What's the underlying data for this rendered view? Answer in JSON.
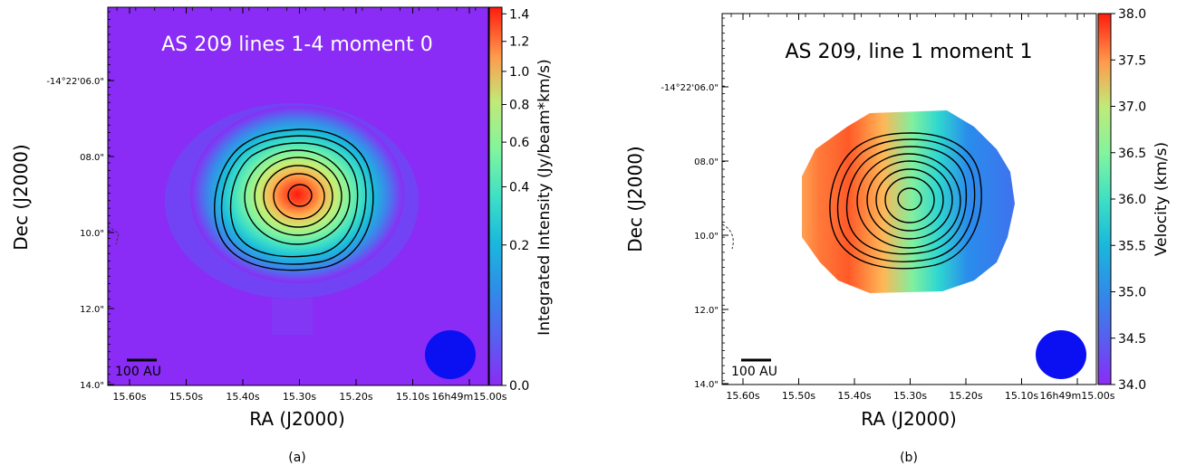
{
  "chart_data": [
    {
      "type": "heatmap",
      "panel_label": "(a)",
      "title": "AS 209 lines 1-4 moment 0",
      "xlabel": "RA (J2000)",
      "ylabel": "Dec (J2000)",
      "x_ticks": [
        "15.60s",
        "15.50s",
        "15.40s",
        "15.30s",
        "15.20s",
        "15.10s",
        "16h49m15.00s"
      ],
      "y_ticks": [
        "-14°22'06.0\"",
        "08.0\"",
        "10.0\"",
        "12.0\"",
        "14.0\""
      ],
      "colorbar": {
        "label": "Integrated Intensity (Jy/beam*km/s)",
        "ticks": [
          "0.0",
          "0.2",
          "0.4",
          "0.6",
          "0.8",
          "1.0",
          "1.2",
          "1.4"
        ],
        "range": [
          0.0,
          1.45
        ],
        "scale": "sqrt"
      },
      "contour_levels": 9,
      "scale_bar": "100 AU",
      "beam_color": "#0b10f2",
      "colormap": "rainbow",
      "background_color": "#8a2cf5"
    },
    {
      "type": "heatmap",
      "panel_label": "(b)",
      "title": "AS 209, line 1 moment 1",
      "xlabel": "RA (J2000)",
      "ylabel": "Dec (J2000)",
      "x_ticks": [
        "15.60s",
        "15.50s",
        "15.40s",
        "15.30s",
        "15.20s",
        "15.10s",
        "16h49m15.00s"
      ],
      "y_ticks": [
        "-14°22'06.0\"",
        "08.0\"",
        "10.0\"",
        "12.0\"",
        "14.0\""
      ],
      "colorbar": {
        "label": "Velocity (km/s)",
        "ticks": [
          "34.0",
          "34.5",
          "35.0",
          "35.5",
          "36.0",
          "36.5",
          "37.0",
          "37.5",
          "38.0"
        ],
        "range": [
          34.0,
          38.0
        ],
        "scale": "linear"
      },
      "contour_levels": 9,
      "scale_bar": "100 AU",
      "beam_color": "#0b10f2",
      "colormap": "rainbow",
      "background_color": "#ffffff"
    }
  ]
}
